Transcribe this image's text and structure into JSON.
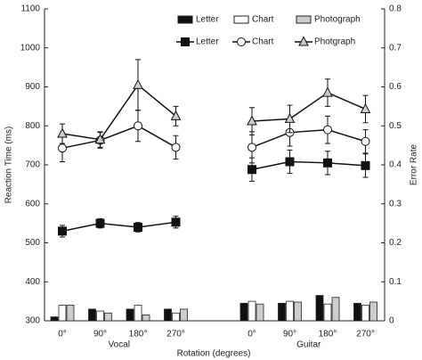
{
  "chart_data": {
    "type": "bar-line",
    "categories": [
      "0°",
      "90°",
      "180°",
      "270°",
      "0°",
      "90°",
      "180°",
      "270°"
    ],
    "groups": [
      "Vocal",
      "Guitar"
    ],
    "x_label": "Rotation (degrees)",
    "y_label": "Reaction Time (ms)",
    "y2_label": "Error Rate",
    "ylim": [
      300,
      1100
    ],
    "yticks": [
      300,
      400,
      500,
      600,
      700,
      800,
      900,
      1000,
      1100
    ],
    "y2lim": [
      0,
      0.8
    ],
    "y2ticks": [
      0,
      0.1,
      0.2,
      0.3,
      0.4,
      0.5,
      0.6,
      0.7,
      0.8
    ],
    "series": [
      {
        "name": "Letter",
        "type": "bar",
        "axis": "y2",
        "color": "#111111",
        "values": [
          0.01,
          0.03,
          0.03,
          0.03,
          0.045,
          0.045,
          0.065,
          0.045
        ]
      },
      {
        "name": "Chart",
        "type": "bar",
        "axis": "y2",
        "color": "#ffffff",
        "values": [
          0.04,
          0.025,
          0.04,
          0.02,
          0.05,
          0.05,
          0.043,
          0.04
        ]
      },
      {
        "name": "Photograph",
        "type": "bar",
        "axis": "y2",
        "color": "#cccccc",
        "values": [
          0.04,
          0.02,
          0.015,
          0.03,
          0.043,
          0.048,
          0.06,
          0.048
        ]
      },
      {
        "name": "Letter",
        "type": "line",
        "marker": "square",
        "color": "#111111",
        "values": [
          530,
          550,
          540,
          553,
          688,
          708,
          705,
          698
        ],
        "errors": [
          15,
          12,
          12,
          15,
          30,
          30,
          30,
          30
        ]
      },
      {
        "name": "Chart",
        "type": "line",
        "marker": "circle",
        "color": "#ffffff",
        "values": [
          743,
          763,
          800,
          745,
          745,
          783,
          790,
          760
        ],
        "errors": [
          35,
          20,
          40,
          30,
          40,
          35,
          35,
          30
        ]
      },
      {
        "name": "Photgraph",
        "type": "line",
        "marker": "triangle",
        "color": "#cccccc",
        "values": [
          780,
          765,
          905,
          825,
          812,
          818,
          885,
          843
        ],
        "errors": [
          25,
          20,
          65,
          25,
          35,
          35,
          35,
          35
        ]
      }
    ]
  }
}
